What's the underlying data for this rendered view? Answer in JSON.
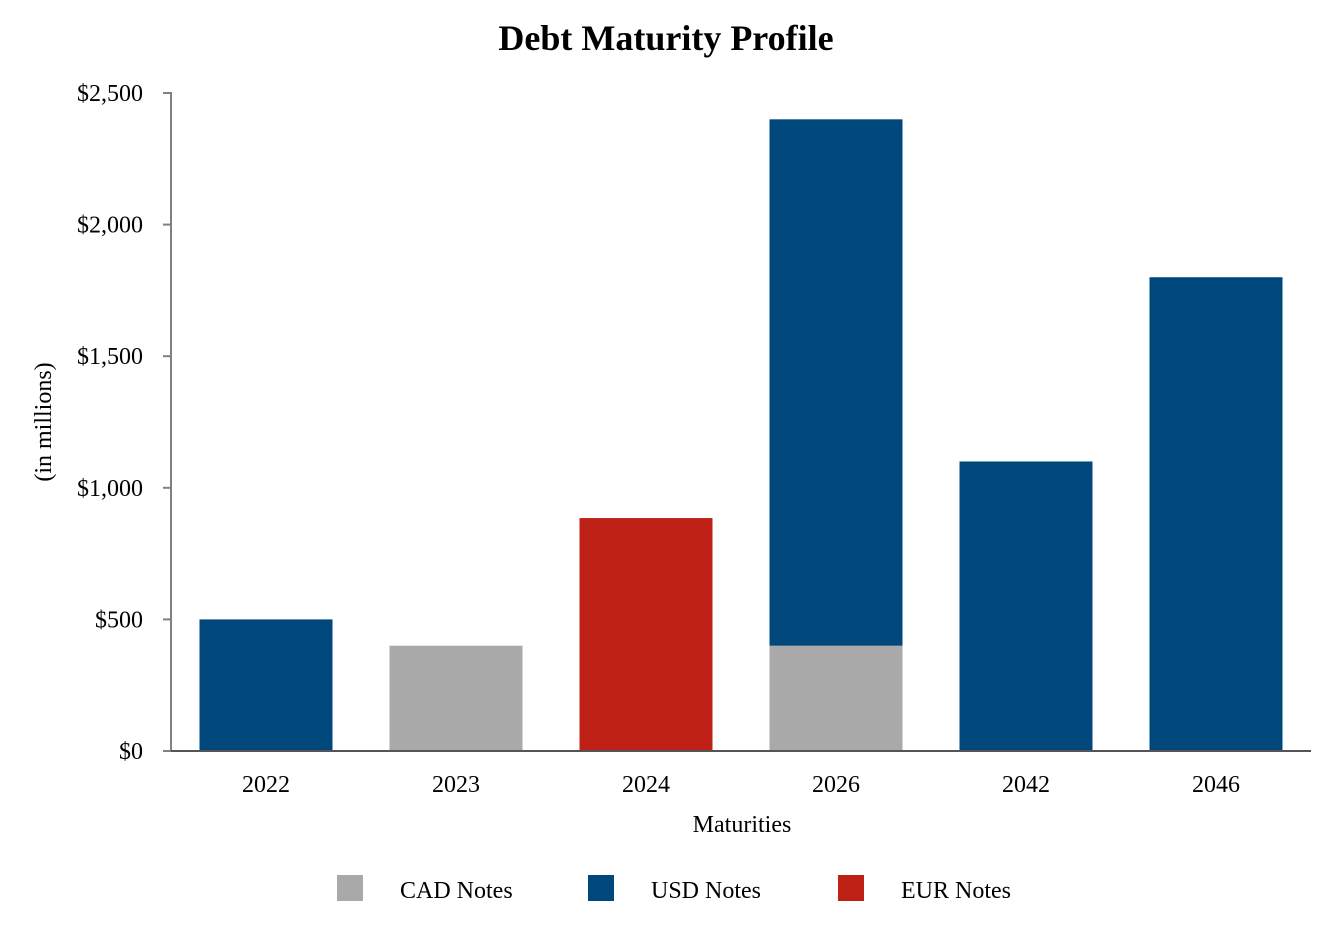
{
  "chart_data": {
    "type": "bar",
    "stacked": true,
    "title": "Debt Maturity Profile",
    "xlabel": "Maturities",
    "ylabel": "(in millions)",
    "categories": [
      "2022",
      "2023",
      "2024",
      "2026",
      "2042",
      "2046"
    ],
    "series": [
      {
        "name": "CAD Notes",
        "color": "#A9A9A9",
        "values": [
          0,
          400,
          0,
          400,
          0,
          0
        ]
      },
      {
        "name": "USD Notes",
        "color": "#00487C",
        "values": [
          500,
          0,
          0,
          2000,
          1100,
          1800
        ]
      },
      {
        "name": "EUR Notes",
        "color": "#BF2116",
        "values": [
          0,
          0,
          885,
          0,
          0,
          0
        ]
      }
    ],
    "ylim": [
      0,
      2500
    ],
    "yticks": [
      0,
      500,
      1000,
      1500,
      2000,
      2500
    ],
    "ytick_labels": [
      "$0",
      "$500",
      "$1,000",
      "$1,500",
      "$2,000",
      "$2,500"
    ],
    "grid": false,
    "legend_position": "bottom"
  }
}
